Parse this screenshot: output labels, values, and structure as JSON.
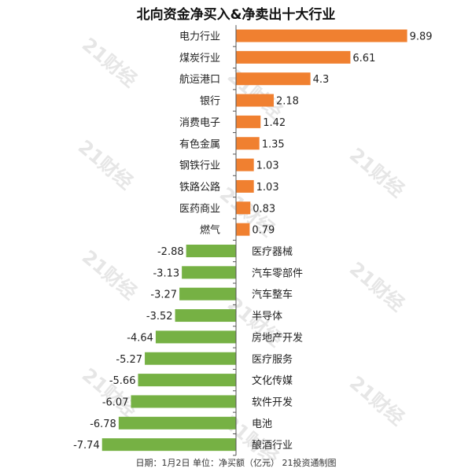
{
  "title": "北向资金净买入&净卖出十大行业",
  "watermark": "21财经",
  "footer": "日期：1月2日 单位：净买额（亿元） 21投资通制图",
  "colors": {
    "positive": "#f08030",
    "negative": "#76b144",
    "axis": "#555555"
  },
  "chart_data": {
    "type": "bar",
    "orientation": "horizontal",
    "categories": [
      "电力行业",
      "煤炭行业",
      "航运港口",
      "银行",
      "消费电子",
      "有色金属",
      "钢铁行业",
      "铁路公路",
      "医药商业",
      "燃气",
      "医疗器械",
      "汽车零部件",
      "汽车整车",
      "半导体",
      "房地产开发",
      "医疗服务",
      "文化传媒",
      "软件开发",
      "电池",
      "酿酒行业"
    ],
    "values": [
      9.89,
      6.61,
      4.3,
      2.18,
      1.42,
      1.35,
      1.03,
      1.03,
      0.83,
      0.79,
      -2.88,
      -3.13,
      -3.27,
      -3.52,
      -4.64,
      -5.27,
      -5.66,
      -6.07,
      -6.78,
      -7.74
    ],
    "value_labels": [
      "9.89",
      "6.61",
      "4.3",
      "2.18",
      "1.42",
      "1.35",
      "1.03",
      "1.03",
      "0.83",
      "0.79",
      "-2.88",
      "-3.13",
      "-3.27",
      "-3.52",
      "-4.64",
      "-5.27",
      "-5.66",
      "-6.07",
      "-6.78",
      "-7.74"
    ]
  }
}
